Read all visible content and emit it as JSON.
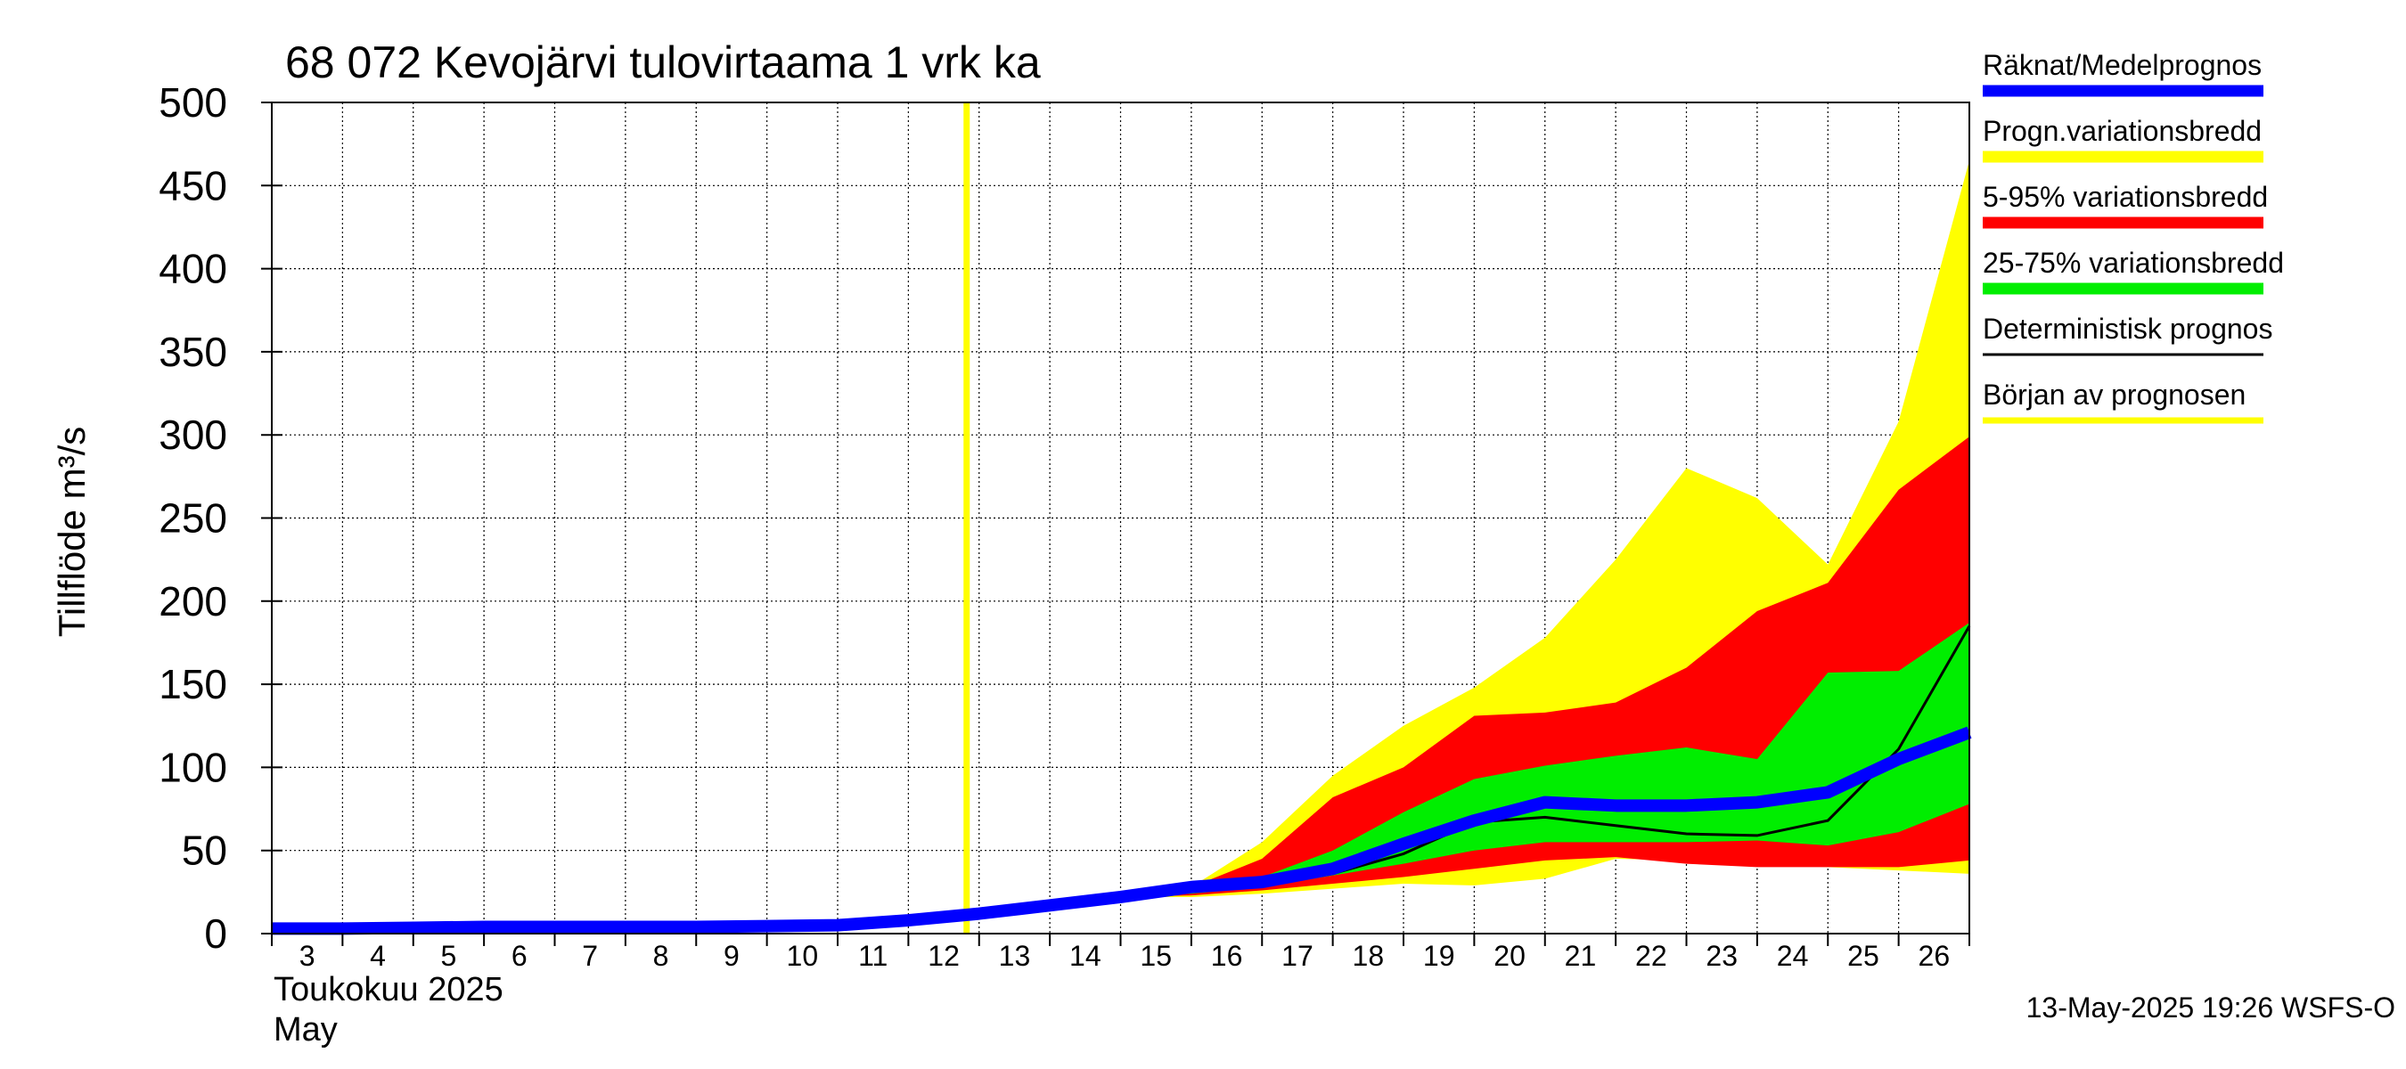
{
  "chart_data": {
    "type": "area",
    "title": "68 072 Kevojärvi tulovirtaama 1 vrk ka",
    "ylabel": "Tillflöde m³/s",
    "xlabel_month_fi": "Toukokuu  2025",
    "xlabel_month_en": "May",
    "ylim": [
      0,
      500
    ],
    "yticks": [
      0,
      50,
      100,
      150,
      200,
      250,
      300,
      350,
      400,
      450,
      500
    ],
    "xlim": [
      3,
      27
    ],
    "xticks": [
      "3",
      "4",
      "5",
      "6",
      "7",
      "8",
      "9",
      "10",
      "11",
      "12",
      "13",
      "14",
      "15",
      "16",
      "17",
      "18",
      "19",
      "20",
      "21",
      "22",
      "23",
      "24",
      "25",
      "26"
    ],
    "grid": true,
    "forecast_start_day": 13,
    "legend_position": "right",
    "colors": {
      "mean": "#0000ff",
      "prog_range": "#ffff00",
      "p5_95": "#ff0000",
      "p25_75": "#00ee00",
      "deterministic": "#000000",
      "forecast_start": "#ffff00"
    },
    "legend": [
      {
        "key": "mean",
        "label": "Räknat/Medelprognos"
      },
      {
        "key": "prog_range",
        "label": "Progn.variationsbredd"
      },
      {
        "key": "p5_95",
        "label": "5-95% variationsbredd"
      },
      {
        "key": "p25_75",
        "label": "25-75% variationsbredd"
      },
      {
        "key": "deterministic",
        "label": "Deterministisk prognos"
      },
      {
        "key": "forecast_start",
        "label": "Början av prognosen"
      }
    ],
    "series": {
      "prog_range": {
        "x": [
          13,
          14,
          15,
          16,
          17,
          18,
          19,
          20,
          21,
          22,
          23,
          24,
          25,
          26,
          27
        ],
        "upper": [
          12,
          17,
          22,
          28,
          55,
          95,
          125,
          148,
          178,
          225,
          280,
          262,
          222,
          308,
          465
        ],
        "lower": [
          12,
          17,
          22,
          22,
          24,
          27,
          30,
          29,
          33,
          45,
          44,
          42,
          40,
          38,
          36
        ]
      },
      "p5_95": {
        "x": [
          13,
          14,
          15,
          16,
          17,
          18,
          19,
          20,
          21,
          22,
          23,
          24,
          25,
          26,
          27
        ],
        "upper": [
          12,
          17,
          22,
          28,
          45,
          82,
          100,
          131,
          133,
          139,
          160,
          194,
          211,
          267,
          299
        ],
        "lower": [
          12,
          17,
          22,
          23,
          26,
          30,
          34,
          39,
          44,
          46,
          42,
          40,
          40,
          40,
          44
        ]
      },
      "p25_75": {
        "x": [
          13,
          14,
          15,
          16,
          17,
          18,
          19,
          20,
          21,
          22,
          23,
          24,
          25,
          26,
          27
        ],
        "upper": [
          12,
          17,
          22,
          28,
          34,
          50,
          73,
          93,
          101,
          107,
          112,
          105,
          157,
          158,
          187
        ],
        "lower": [
          12,
          17,
          22,
          24,
          28,
          35,
          42,
          50,
          55,
          55,
          55,
          56,
          53,
          61,
          78
        ]
      },
      "mean": {
        "x": [
          3,
          4,
          5,
          6,
          7,
          8,
          9,
          10,
          11,
          12,
          13,
          14,
          15,
          16,
          17,
          18,
          19,
          20,
          21,
          22,
          23,
          24,
          25,
          26,
          27
        ],
        "values": [
          3,
          3,
          3.5,
          4,
          4,
          4,
          4,
          4.5,
          5,
          8,
          12,
          17,
          22,
          28,
          31,
          39,
          54,
          68,
          79,
          77,
          77,
          79,
          85,
          105,
          121
        ]
      },
      "deterministic": {
        "x": [
          13,
          14,
          15,
          16,
          17,
          18,
          19,
          20,
          21,
          22,
          23,
          24,
          25,
          26,
          27
        ],
        "values": [
          12,
          17,
          22,
          27,
          29,
          36,
          48,
          67,
          70,
          65,
          60,
          59,
          68,
          111,
          185
        ]
      }
    },
    "footer": "13-May-2025 19:26 WSFS-O"
  }
}
